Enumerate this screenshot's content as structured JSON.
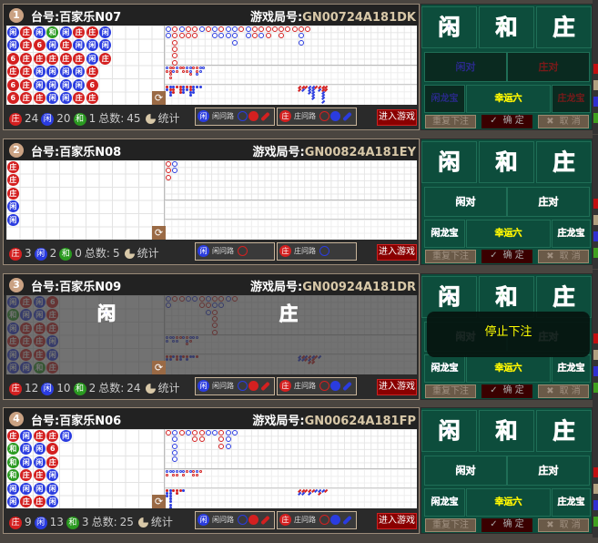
{
  "labels": {
    "table_prefix": "台号:",
    "game_prefix": "游戏局号:",
    "total_prefix": "总数:",
    "stats": "统计",
    "player_ask": "闲问路",
    "banker_ask": "庄问路",
    "enter": "进入游戏",
    "banker": "庄",
    "player": "闲",
    "tie": "和",
    "player_pair": "闲对",
    "banker_pair": "庄对",
    "player_dragon": "闲龙宝",
    "lucky_six": "幸运六",
    "banker_dragon": "庄龙宝",
    "repeat": "重复下注",
    "confirm": "确 定",
    "cancel": "取 消",
    "stop_betting": "停止下注",
    "six": "6"
  },
  "colors": {
    "banker": "#d42020",
    "player": "#2a3ce0",
    "tie": "#2a9a20",
    "panel_green": "#0d4d3c",
    "enter_button": "#8a0000",
    "stop_text": "#ffff00"
  },
  "tables": [
    {
      "index": "1",
      "name": "百家乐N07",
      "game_id": "GN00724A181DK",
      "banker": "24",
      "player": "20",
      "tie": "1",
      "total": "45",
      "disabled_side_bets": true,
      "betting_stopped": false,
      "bead_rows": [
        "闲庄闲和闲庄庄闲",
        "闲庄6闲庄闲闲闲",
        "6庄庄庄庄庄闲庄",
        "庄庄闲闲闲闲庄",
        "6庄闲闲闲闲6",
        "6庄庄闲闲庄庄"
      ],
      "big_road": [
        "PP",
        "BBBBBB",
        "PB",
        "BB",
        "BB",
        "P",
        "B",
        "PP",
        "BP",
        "PP",
        "PPP",
        "B",
        "PP",
        "BB",
        "BP",
        "BB",
        "B",
        "BB",
        "B",
        "B",
        "BPP",
        "B"
      ],
      "big_eye": [
        "PB",
        "BBBB",
        "BP",
        "PB",
        "B",
        "BB",
        "PB",
        "PPB",
        "B",
        "BBP",
        "PP",
        "P"
      ],
      "small_road": [
        "BP",
        "PBPP",
        "PBB",
        "B",
        "BBB",
        "PPP",
        "BP",
        "BBPP",
        "PPP",
        "P",
        "P"
      ],
      "cockroach": [
        "BB",
        "BP",
        "B",
        "PPP",
        "PPPPP",
        "B",
        "BP",
        "BBPPPP",
        "BB"
      ]
    },
    {
      "index": "2",
      "name": "百家乐N08",
      "game_id": "GN00824A181EY",
      "banker": "3",
      "player": "2",
      "tie": "0",
      "total": "5",
      "disabled_side_bets": false,
      "betting_stopped": false,
      "bead_rows": [
        "庄",
        "庄",
        "庄",
        "闲",
        "闲",
        ""
      ],
      "big_road": [
        "BBB",
        "PP"
      ],
      "big_eye": [],
      "small_road": [],
      "cockroach": [],
      "single_ask": true
    },
    {
      "index": "3",
      "name": "百家乐N09",
      "game_id": "GN00924A181DR",
      "banker": "12",
      "player": "10",
      "tie": "2",
      "total": "24",
      "disabled_side_bets": false,
      "betting_stopped": true,
      "bead_rows": [
        "闲庄闲6",
        "和闲闲庄",
        "闲庄庄庄",
        "庄庄庄闲",
        "闲庄庄闲",
        "闲闲和庄"
      ],
      "big_road": [
        "PP",
        "B",
        "B",
        "P",
        "P",
        "BB",
        "PBP",
        "BPBBBB",
        "BP",
        "P",
        "B"
      ],
      "big_eye": [
        "PP",
        "P",
        "PP",
        "BP",
        "B",
        "P",
        "BPB",
        "PB",
        "P",
        "P"
      ],
      "small_road": [
        "BP",
        "BP",
        "P",
        "BB",
        "PP",
        "B",
        "BP",
        "P",
        "P",
        "B"
      ],
      "cockroach": [
        "PP",
        "BP",
        "PB",
        "BPB",
        "PBB",
        "B",
        "P"
      ]
    },
    {
      "index": "4",
      "name": "百家乐N06",
      "game_id": "GN00624A181FP",
      "banker": "9",
      "player": "13",
      "tie": "3",
      "total": "25",
      "disabled_side_bets": false,
      "betting_stopped": false,
      "bead_rows": [
        "庄闲庄庄闲",
        "和闲闲6",
        "和闲闲庄",
        "和庄庄闲",
        "闲闲闲闲",
        "闲庄庄闲"
      ],
      "big_road": [
        "B",
        "PPPPP",
        "B",
        "P",
        "BB",
        "BB",
        "P",
        "P",
        "BBB",
        "PPP",
        "P"
      ],
      "big_eye": [
        "PB",
        "P",
        "PB",
        "PB",
        "P",
        "PB",
        "B",
        "P",
        "BB",
        "PB",
        "B"
      ],
      "small_road": [
        "BPP",
        "PPPPPPP",
        "B",
        "BB",
        "B",
        "P"
      ],
      "cockroach": [
        "BP",
        "BP",
        "B",
        "BP",
        "B",
        "P",
        "PB",
        "P",
        "B"
      ]
    }
  ]
}
